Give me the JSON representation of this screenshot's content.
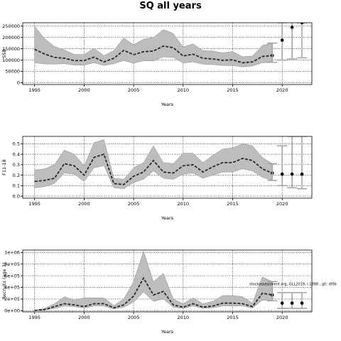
{
  "figure": {
    "title": "SQ all years",
    "caption": "stockassessment.org, GLL2019, r.1898 , git: df0b",
    "colors": {
      "band": "#bdbdbd",
      "band_edge": "#8c8c8c",
      "line": "#2b2b2b",
      "forecast_bar": "#a6a6a6",
      "point": "#000000",
      "grid": "#000000"
    }
  },
  "chart_data": [
    {
      "type": "line",
      "title": "",
      "xlabel": "Years",
      "ylabel": "SSB",
      "xlim": [
        1993.8,
        2023.0
      ],
      "ylim": [
        -8000,
        265000
      ],
      "xticks": [
        1995,
        2000,
        2005,
        2010,
        2015,
        2020
      ],
      "yticks": [
        0,
        50000,
        100000,
        150000,
        200000,
        250000
      ],
      "ytick_labels": [
        "0",
        "50000",
        "100000",
        "150000",
        "200000",
        "250000"
      ],
      "grid": true,
      "legend": "none",
      "years": [
        1995,
        1996,
        1997,
        1998,
        1999,
        2000,
        2001,
        2002,
        2003,
        2004,
        2005,
        2006,
        2007,
        2008,
        2009,
        2010,
        2011,
        2012,
        2013,
        2014,
        2015,
        2016,
        2017,
        2018,
        2019
      ],
      "estimate": [
        148000,
        127000,
        112000,
        108000,
        98000,
        98000,
        113000,
        92000,
        108000,
        143000,
        124000,
        137000,
        140000,
        162000,
        155000,
        118000,
        126000,
        108000,
        105000,
        99000,
        101000,
        88000,
        92000,
        116000,
        120000
      ],
      "lower": [
        88000,
        83000,
        82000,
        84000,
        78000,
        78000,
        88000,
        76000,
        84000,
        98000,
        86000,
        97000,
        96000,
        114000,
        112000,
        87000,
        92000,
        82000,
        80000,
        76000,
        76000,
        70000,
        74000,
        88000,
        90000
      ],
      "upper": [
        250000,
        195000,
        160000,
        145000,
        125000,
        125000,
        152000,
        120000,
        142000,
        198000,
        168000,
        192000,
        200000,
        235000,
        218000,
        158000,
        172000,
        142000,
        140000,
        132000,
        138000,
        115000,
        118000,
        165000,
        175000
      ],
      "forecast": {
        "years": [
          2020,
          2021,
          2022
        ],
        "median": [
          188000,
          245000,
          265000
        ],
        "lower": [
          100000,
          105000,
          110000
        ],
        "upper": [
          265000,
          270000,
          265000
        ]
      }
    },
    {
      "type": "line",
      "title": "",
      "xlabel": "Years",
      "ylabel": "F11-18",
      "xlim": [
        1993.8,
        2023.0
      ],
      "ylim": [
        -0.02,
        0.57
      ],
      "xticks": [
        1995,
        2000,
        2005,
        2010,
        2015,
        2020
      ],
      "yticks": [
        0.0,
        0.1,
        0.2,
        0.3,
        0.4,
        0.5
      ],
      "ytick_labels": [
        "0.0",
        "0.1",
        "0.2",
        "0.3",
        "0.4",
        "0.5"
      ],
      "grid": true,
      "legend": "none",
      "years": [
        1995,
        1996,
        1997,
        1998,
        1999,
        2000,
        2001,
        2002,
        2003,
        2004,
        2005,
        2006,
        2007,
        2008,
        2009,
        2010,
        2011,
        2012,
        2013,
        2014,
        2015,
        2016,
        2017,
        2018,
        2019
      ],
      "estimate": [
        0.14,
        0.15,
        0.17,
        0.31,
        0.29,
        0.2,
        0.37,
        0.4,
        0.12,
        0.11,
        0.19,
        0.23,
        0.34,
        0.23,
        0.22,
        0.29,
        0.3,
        0.23,
        0.28,
        0.32,
        0.32,
        0.36,
        0.34,
        0.26,
        0.22
      ],
      "lower": [
        0.08,
        0.09,
        0.12,
        0.22,
        0.21,
        0.14,
        0.27,
        0.29,
        0.08,
        0.07,
        0.13,
        0.16,
        0.24,
        0.17,
        0.16,
        0.21,
        0.22,
        0.17,
        0.2,
        0.23,
        0.23,
        0.26,
        0.24,
        0.18,
        0.15
      ],
      "upper": [
        0.25,
        0.26,
        0.3,
        0.44,
        0.4,
        0.29,
        0.51,
        0.54,
        0.17,
        0.16,
        0.27,
        0.32,
        0.48,
        0.32,
        0.31,
        0.41,
        0.41,
        0.32,
        0.39,
        0.45,
        0.46,
        0.5,
        0.48,
        0.37,
        0.31
      ],
      "forecast": {
        "years": [
          2020,
          2021,
          2022
        ],
        "median": [
          0.21,
          0.21,
          0.21
        ],
        "lower": [
          0.1,
          0.08,
          0.07
        ],
        "upper": [
          0.48,
          0.57,
          0.57
        ]
      }
    },
    {
      "type": "line",
      "title": "",
      "xlabel": "Years",
      "ylabel": "Recruits (age 3)",
      "xlim": [
        1993.8,
        2023.0
      ],
      "ylim": [
        -20000,
        1040000
      ],
      "xticks": [
        1995,
        2000,
        2005,
        2010,
        2015,
        2020
      ],
      "yticks": [
        0,
        200000,
        400000,
        600000,
        800000,
        1000000
      ],
      "ytick_labels": [
        "0e+00",
        "2e+05",
        "4e+05",
        "6e+05",
        "8e+05",
        "1e+06"
      ],
      "grid": true,
      "legend": "none",
      "years": [
        1995,
        1996,
        1997,
        1998,
        1999,
        2000,
        2001,
        2002,
        2003,
        2004,
        2005,
        2006,
        2007,
        2008,
        2009,
        2010,
        2011,
        2012,
        2013,
        2014,
        2015,
        2016,
        2017,
        2018,
        2019
      ],
      "estimate": [
        5000,
        20000,
        70000,
        120000,
        100000,
        70000,
        120000,
        120000,
        50000,
        100000,
        250000,
        560000,
        270000,
        330000,
        100000,
        60000,
        120000,
        60000,
        80000,
        130000,
        130000,
        120000,
        70000,
        300000,
        270000
      ],
      "lower": [
        2000,
        10000,
        40000,
        80000,
        70000,
        45000,
        80000,
        80000,
        30000,
        60000,
        150000,
        320000,
        160000,
        200000,
        60000,
        40000,
        80000,
        40000,
        50000,
        80000,
        80000,
        80000,
        45000,
        180000,
        170000
      ],
      "upper": [
        10000,
        40000,
        120000,
        240000,
        180000,
        220000,
        220000,
        220000,
        90000,
        200000,
        500000,
        1020000,
        500000,
        640000,
        200000,
        120000,
        220000,
        120000,
        160000,
        260000,
        260000,
        240000,
        130000,
        580000,
        500000
      ],
      "forecast": {
        "years": [
          2020,
          2021,
          2022
        ],
        "median": [
          130000,
          130000,
          130000
        ],
        "lower": [
          40000,
          40000,
          40000
        ],
        "upper": [
          310000,
          310000,
          310000
        ]
      }
    }
  ]
}
